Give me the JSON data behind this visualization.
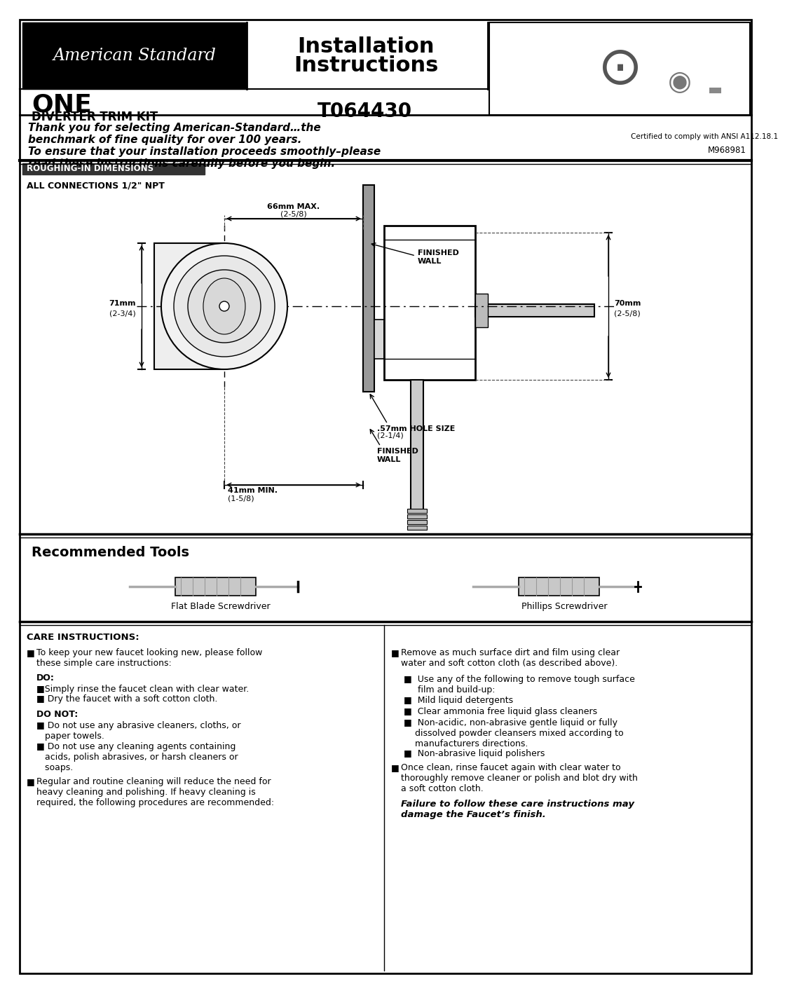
{
  "title_brand": "American Standard",
  "title_main": "Installation\nInstructions",
  "title_model": "ONE",
  "title_subtitle": "DIVERTER TRIM KIT",
  "title_part": "T064430",
  "certified_text": "Certified to comply with ANSI A112.18.1",
  "model_number": "M968981",
  "thank_you_text": "Thank you for selecting American-Standard…the\nbenchmark of fine quality for over 100 years.",
  "ensure_text": "To ensure that your installation proceeds smoothly–please\nread these instructions carefully before you begin.",
  "roughing_title": "ROUGHING-IN DIMENSIONS",
  "connections_text": "ALL CONNECTIONS 1/2\" NPT",
  "dim_66mm_l1": "66mm MAX.",
  "dim_66mm_l2": "(2-5/8)",
  "dim_71mm_l1": "71mm",
  "dim_71mm_l2": "(2-3/4)",
  "dim_70mm_l1": "70mm",
  "dim_70mm_l2": "(2-5/8)",
  "dim_57mm_l1": ".57mm HOLE SIZE",
  "dim_57mm_l2": "(2-1/4)",
  "dim_41mm_l1": "41mm MIN.",
  "dim_41mm_l2": "(1-5/8)",
  "finished_wall": "FINISHED\nWALL",
  "recommended_title": "Recommended Tools",
  "tool1": "Flat Blade Screwdriver",
  "tool2": "Phillips Screwdriver",
  "care_title": "CARE INSTRUCTIONS:",
  "bg_color": "#ffffff",
  "border_color": "#000000",
  "header_bg": "#000000",
  "header_text_color": "#ffffff"
}
